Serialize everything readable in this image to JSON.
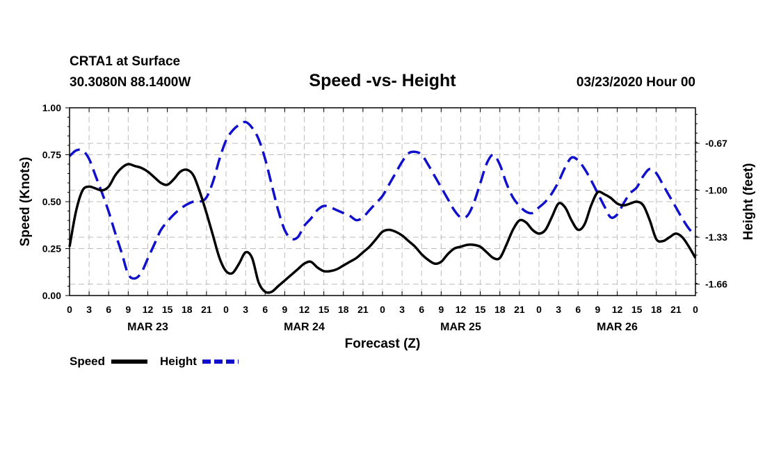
{
  "chart_data": {
    "type": "line",
    "station": "CRTA1 at Surface",
    "location": "30.3080N 88.1400W",
    "title": "Speed -vs- Height",
    "run": "03/23/2020 Hour 00",
    "xlabel": "Forecast (Z)",
    "ylabel_left": "Speed (Knots)",
    "ylabel_right": "Height (feet)",
    "x_unit": "forecast hour",
    "xlim": [
      0,
      96
    ],
    "ylim_left": [
      0,
      1.0
    ],
    "ylim_right": [
      -1.74,
      -0.42
    ],
    "left_ticks": [
      "0.00",
      "0.25",
      "0.50",
      "0.75",
      "1.00"
    ],
    "left_tick_values": [
      0,
      0.25,
      0.5,
      0.75,
      1.0
    ],
    "right_ticks": [
      "-1.66",
      "-1.33",
      "-1.00",
      "-0.67"
    ],
    "right_tick_values": [
      -1.66,
      -1.33,
      -1.0,
      -0.67
    ],
    "x_tick_hours": [
      0,
      3,
      6,
      9,
      12,
      15,
      18,
      21,
      24,
      27,
      30,
      33,
      36,
      39,
      42,
      45,
      48,
      51,
      54,
      57,
      60,
      63,
      66,
      69,
      72,
      75,
      78,
      81,
      84,
      87,
      90,
      93,
      96
    ],
    "x_tick_labels": [
      "0",
      "3",
      "6",
      "9",
      "12",
      "15",
      "18",
      "21",
      "0",
      "3",
      "6",
      "9",
      "12",
      "15",
      "18",
      "21",
      "0",
      "3",
      "6",
      "9",
      "12",
      "15",
      "18",
      "21",
      "0",
      "3",
      "6",
      "9",
      "12",
      "15",
      "18",
      "21",
      "0"
    ],
    "date_labels": [
      {
        "label": "MAR 23",
        "hour": 12
      },
      {
        "label": "MAR 24",
        "hour": 36
      },
      {
        "label": "MAR 25",
        "hour": 60
      },
      {
        "label": "MAR 26",
        "hour": 84
      }
    ],
    "grid": true,
    "series": [
      {
        "name": "Speed",
        "axis": "left",
        "color": "#000000",
        "style": "solid",
        "points": [
          [
            0,
            0.26
          ],
          [
            1,
            0.45
          ],
          [
            2,
            0.56
          ],
          [
            3,
            0.58
          ],
          [
            4,
            0.57
          ],
          [
            5,
            0.56
          ],
          [
            6,
            0.58
          ],
          [
            7,
            0.64
          ],
          [
            8,
            0.68
          ],
          [
            9,
            0.7
          ],
          [
            10,
            0.69
          ],
          [
            11,
            0.68
          ],
          [
            12,
            0.66
          ],
          [
            13,
            0.63
          ],
          [
            14,
            0.6
          ],
          [
            15,
            0.59
          ],
          [
            16,
            0.62
          ],
          [
            17,
            0.66
          ],
          [
            18,
            0.67
          ],
          [
            19,
            0.64
          ],
          [
            20,
            0.55
          ],
          [
            21,
            0.44
          ],
          [
            22,
            0.32
          ],
          [
            23,
            0.2
          ],
          [
            24,
            0.13
          ],
          [
            25,
            0.12
          ],
          [
            26,
            0.17
          ],
          [
            27,
            0.23
          ],
          [
            28,
            0.2
          ],
          [
            29,
            0.07
          ],
          [
            30,
            0.02
          ],
          [
            31,
            0.02
          ],
          [
            32,
            0.05
          ],
          [
            33,
            0.08
          ],
          [
            34,
            0.11
          ],
          [
            35,
            0.14
          ],
          [
            36,
            0.17
          ],
          [
            37,
            0.18
          ],
          [
            38,
            0.15
          ],
          [
            39,
            0.13
          ],
          [
            40,
            0.13
          ],
          [
            41,
            0.14
          ],
          [
            42,
            0.16
          ],
          [
            43,
            0.18
          ],
          [
            44,
            0.2
          ],
          [
            45,
            0.23
          ],
          [
            46,
            0.26
          ],
          [
            47,
            0.3
          ],
          [
            48,
            0.34
          ],
          [
            49,
            0.35
          ],
          [
            50,
            0.34
          ],
          [
            51,
            0.32
          ],
          [
            52,
            0.29
          ],
          [
            53,
            0.26
          ],
          [
            54,
            0.22
          ],
          [
            55,
            0.19
          ],
          [
            56,
            0.17
          ],
          [
            57,
            0.18
          ],
          [
            58,
            0.22
          ],
          [
            59,
            0.25
          ],
          [
            60,
            0.26
          ],
          [
            61,
            0.27
          ],
          [
            62,
            0.27
          ],
          [
            63,
            0.26
          ],
          [
            64,
            0.23
          ],
          [
            65,
            0.2
          ],
          [
            66,
            0.2
          ],
          [
            67,
            0.27
          ],
          [
            68,
            0.35
          ],
          [
            69,
            0.4
          ],
          [
            70,
            0.39
          ],
          [
            71,
            0.35
          ],
          [
            72,
            0.33
          ],
          [
            73,
            0.35
          ],
          [
            74,
            0.42
          ],
          [
            75,
            0.49
          ],
          [
            76,
            0.47
          ],
          [
            77,
            0.4
          ],
          [
            78,
            0.35
          ],
          [
            79,
            0.38
          ],
          [
            80,
            0.48
          ],
          [
            81,
            0.55
          ],
          [
            82,
            0.54
          ],
          [
            83,
            0.52
          ],
          [
            84,
            0.49
          ],
          [
            85,
            0.48
          ],
          [
            86,
            0.49
          ],
          [
            87,
            0.5
          ],
          [
            88,
            0.48
          ],
          [
            89,
            0.4
          ],
          [
            90,
            0.3
          ],
          [
            91,
            0.29
          ],
          [
            92,
            0.31
          ],
          [
            93,
            0.33
          ],
          [
            94,
            0.31
          ],
          [
            95,
            0.26
          ],
          [
            96,
            0.2
          ]
        ]
      },
      {
        "name": "Height",
        "axis": "right",
        "color": "#1010cc",
        "style": "dashed",
        "points": [
          [
            0,
            -0.76
          ],
          [
            1,
            -0.72
          ],
          [
            2,
            -0.72
          ],
          [
            3,
            -0.78
          ],
          [
            4,
            -0.9
          ],
          [
            5,
            -1.02
          ],
          [
            6,
            -1.15
          ],
          [
            7,
            -1.3
          ],
          [
            8,
            -1.44
          ],
          [
            9,
            -1.59
          ],
          [
            10,
            -1.62
          ],
          [
            11,
            -1.58
          ],
          [
            12,
            -1.48
          ],
          [
            13,
            -1.38
          ],
          [
            14,
            -1.28
          ],
          [
            15,
            -1.22
          ],
          [
            16,
            -1.17
          ],
          [
            17,
            -1.13
          ],
          [
            18,
            -1.1
          ],
          [
            19,
            -1.08
          ],
          [
            20,
            -1.08
          ],
          [
            21,
            -1.05
          ],
          [
            22,
            -0.94
          ],
          [
            23,
            -0.78
          ],
          [
            24,
            -0.65
          ],
          [
            25,
            -0.58
          ],
          [
            26,
            -0.54
          ],
          [
            27,
            -0.52
          ],
          [
            28,
            -0.56
          ],
          [
            29,
            -0.64
          ],
          [
            30,
            -0.78
          ],
          [
            31,
            -0.96
          ],
          [
            32,
            -1.14
          ],
          [
            33,
            -1.28
          ],
          [
            34,
            -1.34
          ],
          [
            35,
            -1.33
          ],
          [
            36,
            -1.25
          ],
          [
            37,
            -1.2
          ],
          [
            38,
            -1.14
          ],
          [
            39,
            -1.11
          ],
          [
            40,
            -1.12
          ],
          [
            41,
            -1.14
          ],
          [
            42,
            -1.16
          ],
          [
            43,
            -1.18
          ],
          [
            44,
            -1.21
          ],
          [
            45,
            -1.19
          ],
          [
            46,
            -1.14
          ],
          [
            47,
            -1.09
          ],
          [
            48,
            -1.04
          ],
          [
            49,
            -0.96
          ],
          [
            50,
            -0.88
          ],
          [
            51,
            -0.8
          ],
          [
            52,
            -0.74
          ],
          [
            53,
            -0.73
          ],
          [
            54,
            -0.75
          ],
          [
            55,
            -0.82
          ],
          [
            56,
            -0.9
          ],
          [
            57,
            -0.98
          ],
          [
            58,
            -1.06
          ],
          [
            59,
            -1.14
          ],
          [
            60,
            -1.19
          ],
          [
            61,
            -1.18
          ],
          [
            62,
            -1.09
          ],
          [
            63,
            -0.95
          ],
          [
            64,
            -0.81
          ],
          [
            65,
            -0.75
          ],
          [
            66,
            -0.82
          ],
          [
            67,
            -0.95
          ],
          [
            68,
            -1.05
          ],
          [
            69,
            -1.11
          ],
          [
            70,
            -1.15
          ],
          [
            71,
            -1.16
          ],
          [
            72,
            -1.12
          ],
          [
            73,
            -1.08
          ],
          [
            74,
            -1.02
          ],
          [
            75,
            -0.94
          ],
          [
            76,
            -0.84
          ],
          [
            77,
            -0.77
          ],
          [
            78,
            -0.79
          ],
          [
            79,
            -0.85
          ],
          [
            80,
            -0.93
          ],
          [
            81,
            -1.02
          ],
          [
            82,
            -1.11
          ],
          [
            83,
            -1.19
          ],
          [
            84,
            -1.17
          ],
          [
            85,
            -1.09
          ],
          [
            86,
            -1.02
          ],
          [
            87,
            -0.98
          ],
          [
            88,
            -0.9
          ],
          [
            89,
            -0.85
          ],
          [
            90,
            -0.88
          ],
          [
            91,
            -0.96
          ],
          [
            92,
            -1.04
          ],
          [
            93,
            -1.12
          ],
          [
            94,
            -1.2
          ],
          [
            95,
            -1.27
          ],
          [
            96,
            -1.32
          ]
        ]
      }
    ],
    "legend": [
      {
        "label": "Speed",
        "color": "#000000",
        "style": "solid"
      },
      {
        "label": "Height",
        "color": "#1010cc",
        "style": "dashed"
      }
    ],
    "legend_position": "bottom-left"
  }
}
